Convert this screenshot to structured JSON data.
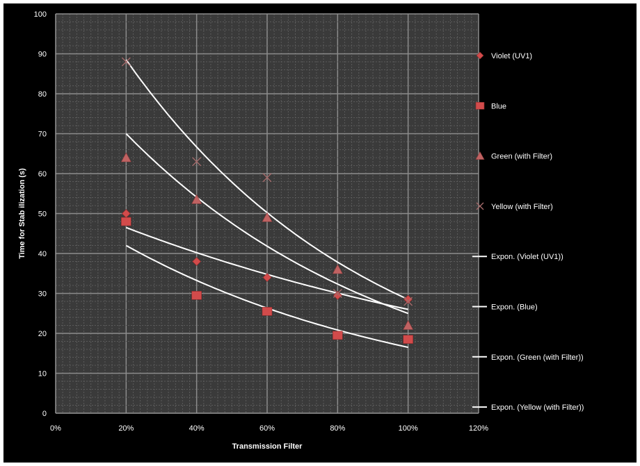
{
  "chart_data": {
    "type": "scatter",
    "title": "",
    "xlabel": "Transmission Filter",
    "ylabel": "Time for Stab ilization (s)",
    "xlim": [
      0,
      1.2
    ],
    "ylim": [
      0,
      100
    ],
    "x_ticks": [
      "0%",
      "20%",
      "40%",
      "60%",
      "80%",
      "100%",
      "120%"
    ],
    "y_ticks": [
      "0",
      "10",
      "20",
      "30",
      "40",
      "50",
      "60",
      "70",
      "80",
      "90",
      "100"
    ],
    "grid": true,
    "legend_position": "right",
    "series": [
      {
        "name": "Violet  (UV1)",
        "marker": "diamond",
        "color": "#d24b4b",
        "x": [
          0.2,
          0.4,
          0.6,
          0.8,
          1.0
        ],
        "y": [
          50,
          38,
          34,
          29.5,
          28.5
        ]
      },
      {
        "name": "Blue",
        "marker": "square",
        "color": "#d24b4b",
        "x": [
          0.2,
          0.4,
          0.6,
          0.8,
          1.0
        ],
        "y": [
          48,
          29.5,
          25.5,
          19.5,
          18.5
        ]
      },
      {
        "name": "Green (with Filter)",
        "marker": "triangle",
        "color": "#c06262",
        "x": [
          0.2,
          0.4,
          0.6,
          0.8,
          1.0
        ],
        "y": [
          64,
          53.5,
          49,
          36,
          22
        ]
      },
      {
        "name": "Yellow (with Filter)",
        "marker": "x",
        "color": "#a36a6a",
        "x": [
          0.2,
          0.4,
          0.6,
          0.8,
          1.0
        ],
        "y": [
          88,
          63,
          59,
          30,
          28
        ]
      }
    ],
    "trendlines": [
      {
        "name": "Expon. (Violet  (UV1))",
        "type": "exponential",
        "x_from": 0.2,
        "x_to": 1.0,
        "y_from": 46.5,
        "y_to": 26
      },
      {
        "name": "Expon. (Blue)",
        "type": "exponential",
        "x_from": 0.2,
        "x_to": 1.0,
        "y_from": 42,
        "y_to": 16.5
      },
      {
        "name": "Expon. (Green (with Filter))",
        "type": "exponential",
        "x_from": 0.2,
        "x_to": 1.0,
        "y_from": 70,
        "y_to": 25
      },
      {
        "name": "Expon. (Yellow (with Filter))",
        "type": "exponential",
        "x_from": 0.2,
        "x_to": 1.0,
        "y_from": 88.5,
        "y_to": 28.5
      }
    ]
  }
}
